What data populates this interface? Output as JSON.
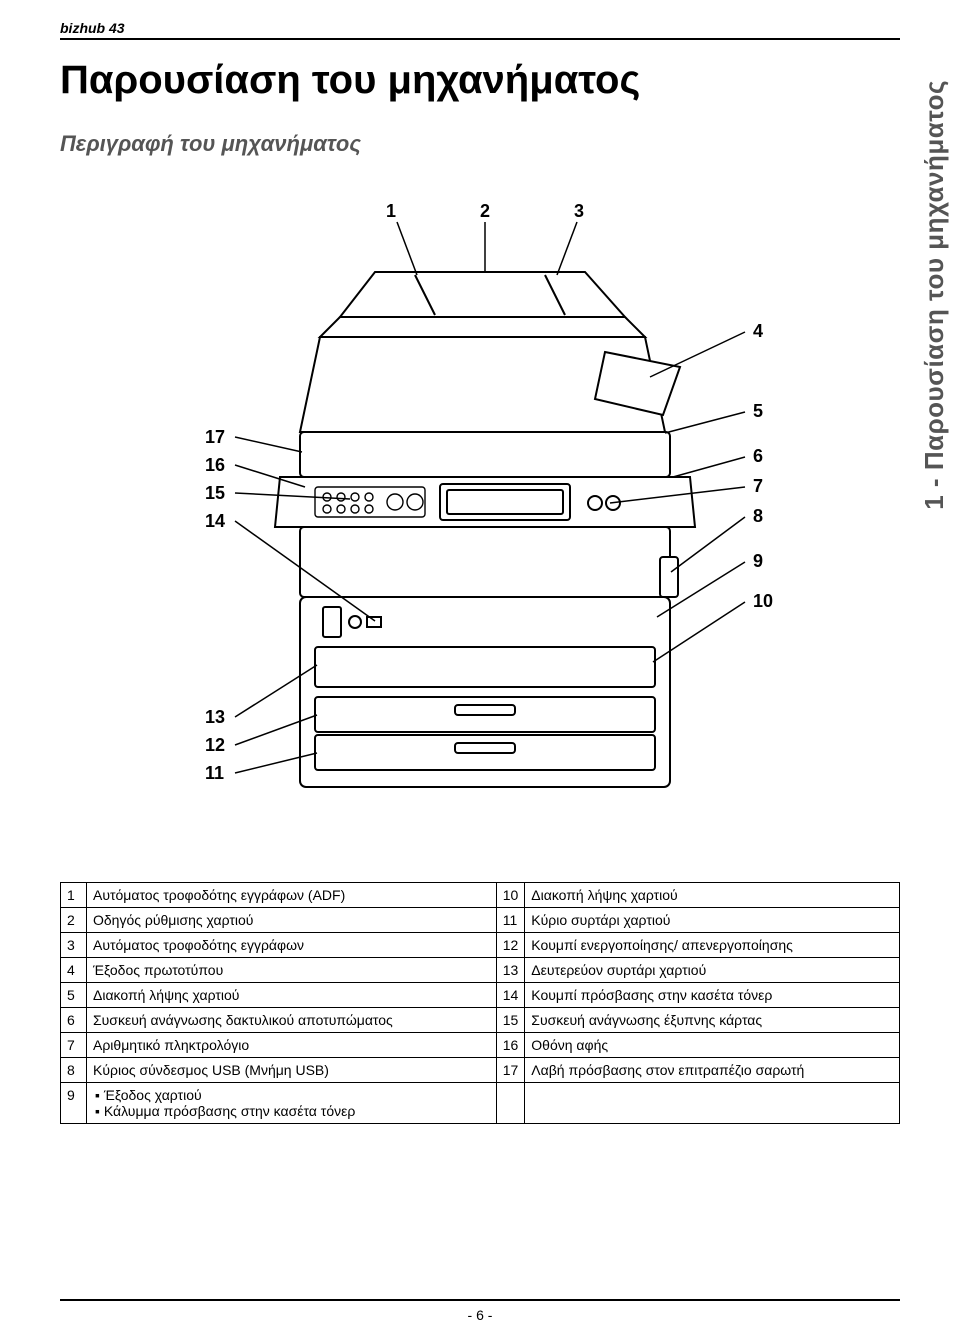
{
  "header": {
    "product": "bizhub 43"
  },
  "titles": {
    "main": "Παρουσίαση του μηχανήματος",
    "sub": "Περιγραφή του μηχανήματος"
  },
  "side_tab": "1 - Παρουσίαση του μηχανήματος",
  "diagram": {
    "callout_labels": {
      "top": [
        "1",
        "2",
        "3"
      ],
      "right": [
        "4",
        "5",
        "6",
        "7",
        "8",
        "9",
        "10"
      ],
      "left_upper": [
        "17",
        "16",
        "15",
        "14"
      ],
      "left_lower": [
        "13",
        "12",
        "11"
      ]
    }
  },
  "table": {
    "rows": [
      {
        "a_num": "1",
        "a_desc": "Αυτόματος τροφοδότης εγγράφων (ADF)",
        "b_num": "10",
        "b_desc": "Διακοπή λήψης χαρτιού"
      },
      {
        "a_num": "2",
        "a_desc": "Οδηγός ρύθμισης χαρτιού",
        "b_num": "11",
        "b_desc": "Κύριο συρτάρι χαρτιού"
      },
      {
        "a_num": "3",
        "a_desc": "Αυτόματος τροφοδότης εγγράφων",
        "b_num": "12",
        "b_desc": "Κουμπί ενεργοποίησης/ απενεργοποίησης"
      },
      {
        "a_num": "4",
        "a_desc": "Έξοδος πρωτοτύπου",
        "b_num": "13",
        "b_desc": "Δευτερεύον συρτάρι χαρτιού"
      },
      {
        "a_num": "5",
        "a_desc": "Διακοπή λήψης χαρτιού",
        "b_num": "14",
        "b_desc": "Κουμπί πρόσβασης στην κασέτα τόνερ"
      },
      {
        "a_num": "6",
        "a_desc": "Συσκευή ανάγνωσης δακτυλικού αποτυπώματος",
        "b_num": "15",
        "b_desc": "Συσκευή ανάγνωσης έξυπνης κάρτας"
      },
      {
        "a_num": "7",
        "a_desc": "Αριθμητικό πληκτρολόγιο",
        "b_num": "16",
        "b_desc": "Οθόνη αφής"
      },
      {
        "a_num": "8",
        "a_desc": "Κύριος σύνδεσμος USB (Μνήμη USB)",
        "b_num": "17",
        "b_desc": "Λαβή πρόσβασης στον επιτραπέζιο σαρωτή"
      },
      {
        "a_num": "9",
        "a_desc_list": [
          "Έξοδος χαρτιού",
          "Κάλυμμα πρόσβασης στην κασέτα τόνερ"
        ],
        "b_num": "",
        "b_desc": ""
      }
    ]
  },
  "footer": {
    "page": "- 6 -"
  },
  "colors": {
    "text": "#000000",
    "subtitle": "#555555",
    "background": "#ffffff",
    "border": "#000000",
    "device_fill": "#ffffff",
    "device_stroke": "#000000"
  }
}
